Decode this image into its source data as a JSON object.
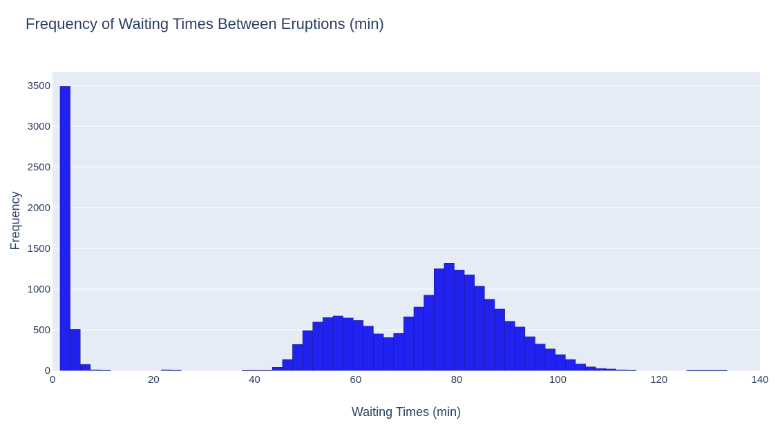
{
  "chart_data": {
    "type": "bar",
    "title": "Frequency of Waiting Times Between Eruptions (min)",
    "xlabel": "Waiting Times (min)",
    "ylabel": "Frequency",
    "xlim": [
      0,
      140
    ],
    "ylim": [
      0,
      3670
    ],
    "x_ticks": [
      0,
      20,
      40,
      60,
      80,
      100,
      120,
      140
    ],
    "y_ticks": [
      0,
      500,
      1000,
      1500,
      2000,
      2500,
      3000,
      3500
    ],
    "x_tick_labels": [
      "0",
      "20",
      "40",
      "60",
      "80",
      "100",
      "120",
      "140"
    ],
    "y_tick_labels": [
      "0",
      "500",
      "1000",
      "1500",
      "2000",
      "2500",
      "3000",
      "3500"
    ],
    "bin_size": 2,
    "bin_start": 1.5,
    "values": [
      3490,
      505,
      75,
      8,
      5,
      0,
      0,
      0,
      0,
      0,
      8,
      6,
      0,
      0,
      0,
      0,
      0,
      0,
      2,
      4,
      4,
      40,
      135,
      320,
      490,
      595,
      650,
      670,
      645,
      615,
      545,
      450,
      405,
      455,
      660,
      780,
      925,
      1250,
      1320,
      1235,
      1175,
      1035,
      875,
      755,
      605,
      535,
      415,
      325,
      265,
      195,
      135,
      80,
      45,
      25,
      18,
      8,
      5,
      0,
      0,
      0,
      0,
      0,
      2,
      2,
      2,
      2,
      0,
      0,
      0,
      0,
      0,
      0,
      0,
      4,
      0
    ],
    "grid": true,
    "colors": {
      "bar_fill": "#2121f0",
      "bar_edge": "#1a1a6e",
      "plot_background": "#e5ecf6",
      "grid": "#ffffff",
      "text": "#2a3f5f"
    }
  }
}
